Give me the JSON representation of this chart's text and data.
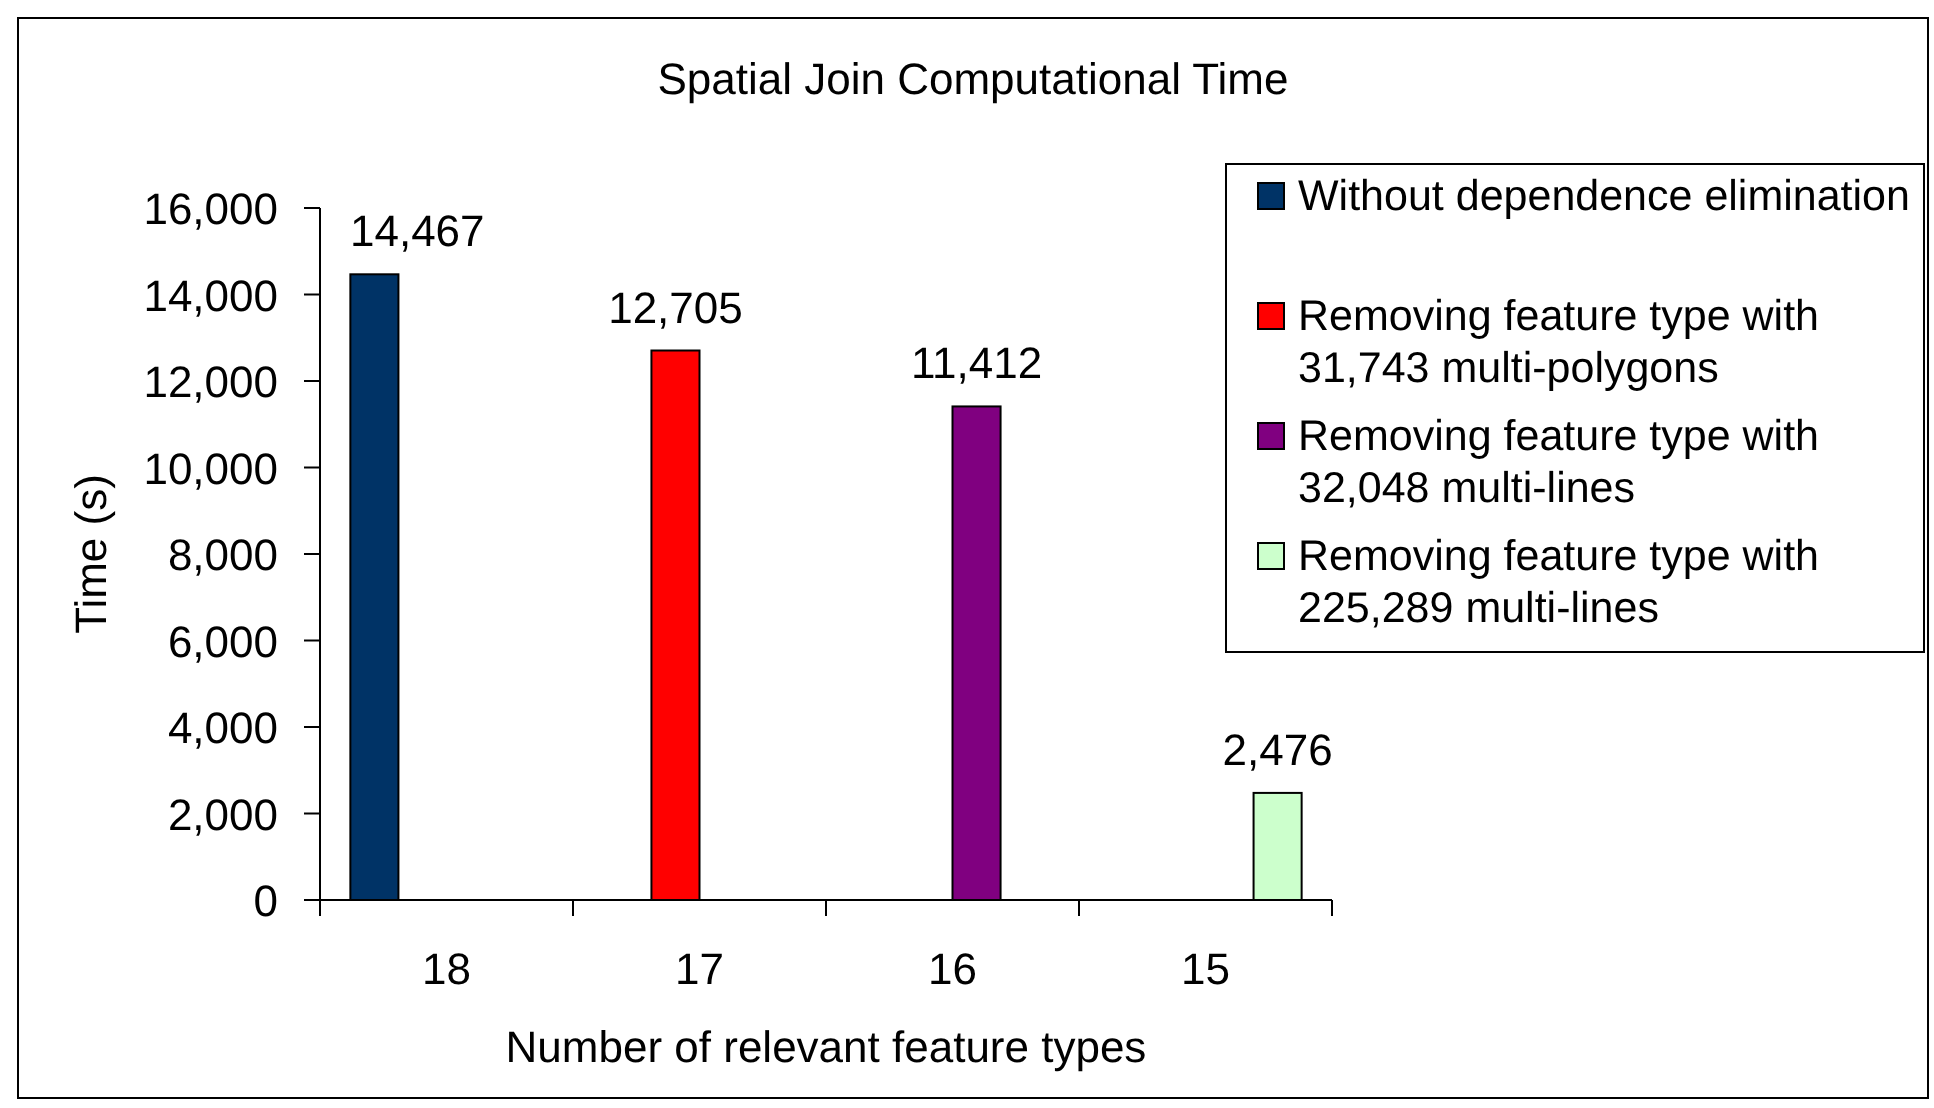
{
  "chart_data": {
    "type": "bar",
    "title": "Spatial Join Computational Time",
    "xlabel": "Number of relevant feature types",
    "ylabel": "Time (s)",
    "categories": [
      "18",
      "17",
      "16",
      "15"
    ],
    "series": [
      {
        "name": "Without dependence elimination",
        "color": "#003366",
        "values": [
          14467,
          null,
          null,
          null
        ],
        "value_labels": [
          "14,467",
          null,
          null,
          null
        ]
      },
      {
        "name": "Removing feature type with 31,743 multi-polygons",
        "color": "#ff0000",
        "values": [
          null,
          12705,
          null,
          null
        ],
        "value_labels": [
          null,
          "12,705",
          null,
          null
        ]
      },
      {
        "name": "Removing feature type with 32,048 multi-lines",
        "color": "#800080",
        "values": [
          null,
          null,
          11412,
          null
        ],
        "value_labels": [
          null,
          null,
          "11,412",
          null
        ]
      },
      {
        "name": "Removing feature type with 225,289 multi-lines",
        "color": "#ccffcc",
        "values": [
          null,
          null,
          null,
          2476
        ],
        "value_labels": [
          null,
          null,
          null,
          "2,476"
        ]
      }
    ],
    "ylim": [
      0,
      16000
    ],
    "yticks": [
      {
        "value": 0,
        "label": "0"
      },
      {
        "value": 2000,
        "label": "2,000"
      },
      {
        "value": 4000,
        "label": "4,000"
      },
      {
        "value": 6000,
        "label": "6,000"
      },
      {
        "value": 8000,
        "label": "8,000"
      },
      {
        "value": 10000,
        "label": "10,000"
      },
      {
        "value": 12000,
        "label": "12,000"
      },
      {
        "value": 14000,
        "label": "14,000"
      },
      {
        "value": 16000,
        "label": "16,000"
      }
    ],
    "legend": "top right"
  }
}
